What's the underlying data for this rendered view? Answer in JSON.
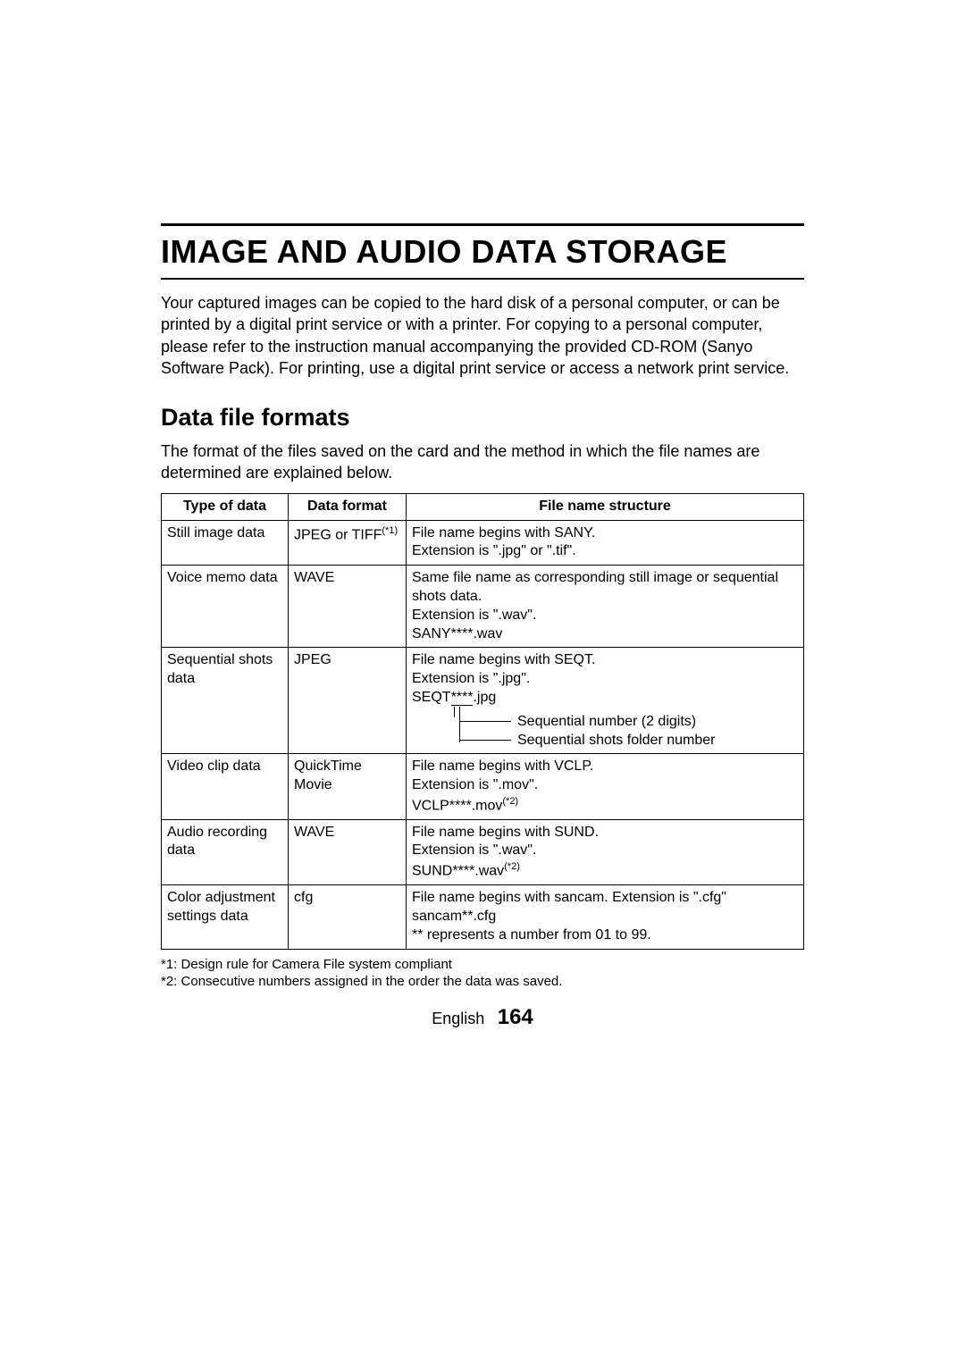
{
  "title": "IMAGE AND AUDIO DATA STORAGE",
  "intro": "Your captured images can be copied to the hard disk of a personal computer, or can be printed by a digital print service or with a printer. For copying to a personal computer, please refer to the instruction manual accompanying the provided CD-ROM (Sanyo Software Pack). For printing, use a digital print service or access a network print service.",
  "section_heading": "Data file formats",
  "section_desc": "The format of the files saved on the card and the method in which the file names are determined are explained below.",
  "table": {
    "headers": [
      "Type of data",
      "Data format",
      "File name structure"
    ],
    "rows": [
      {
        "type": "Still image data",
        "format_pre": "JPEG or TIFF",
        "format_sup": "(*1)",
        "structure_lines": [
          "File name begins with SANY.",
          "Extension is \".jpg\" or \".tif\"."
        ]
      },
      {
        "type": "Voice memo data",
        "format_pre": "WAVE",
        "format_sup": "",
        "structure_lines": [
          "Same file name as corresponding still image or sequential shots data.",
          "Extension is \".wav\".",
          "SANY****.wav"
        ]
      },
      {
        "type": "Sequential shots data",
        "format_pre": "JPEG",
        "format_sup": "",
        "structure_lines": [
          "File name begins with SEQT.",
          "Extension is \".jpg\"."
        ],
        "seq": {
          "code_prefix": "SEQT",
          "code_mid_a": "**",
          "code_mid_b": "**",
          "code_suffix": ".jpg",
          "label1": "Sequential number (2 digits)",
          "label2": "Sequential shots folder number"
        }
      },
      {
        "type": "Video clip data",
        "format_pre": "QuickTime Movie",
        "format_sup": "",
        "structure_lines": [
          "File name begins with VCLP.",
          "Extension is \".mov\"."
        ],
        "lastline_pre": "VCLP****.mov",
        "lastline_sup": "(*2)"
      },
      {
        "type": "Audio recording data",
        "format_pre": "WAVE",
        "format_sup": "",
        "structure_lines": [
          "File name begins with SUND.",
          "Extension is \".wav\"."
        ],
        "lastline_pre": "SUND****.wav",
        "lastline_sup": "(*2)"
      },
      {
        "type": "Color adjustment settings data",
        "format_pre": "cfg",
        "format_sup": "",
        "structure_lines": [
          "File name begins with sancam. Extension is \".cfg\"",
          "sancam**.cfg",
          "** represents a number from 01 to 99."
        ]
      }
    ]
  },
  "footnotes": [
    "*1: Design rule for Camera File system compliant",
    "*2: Consecutive numbers assigned in the order the data was saved."
  ],
  "footer": {
    "language": "English",
    "page": "164"
  }
}
